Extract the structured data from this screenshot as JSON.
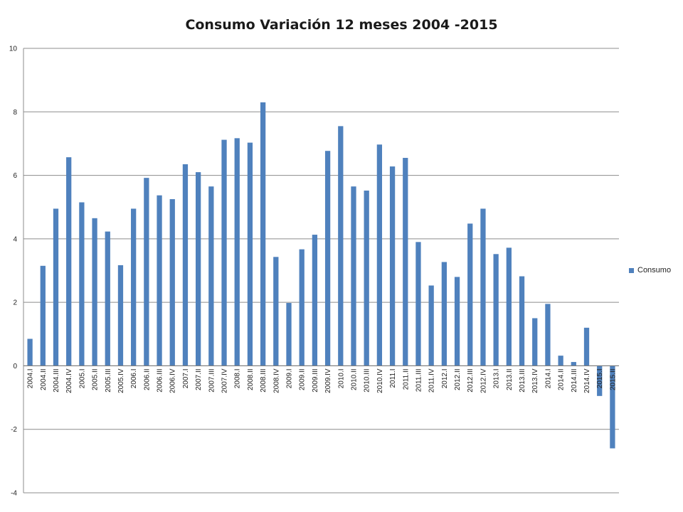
{
  "chart_data": {
    "type": "bar",
    "title": "Consumo Variación 12 meses 2004 -2015",
    "xlabel": "",
    "ylabel": "",
    "ylim": [
      -4,
      10
    ],
    "yticks": [
      -4,
      -2,
      0,
      2,
      4,
      6,
      8,
      10
    ],
    "grid": true,
    "legend_position": "right",
    "bar_color": "#4F81BD",
    "categories": [
      "2004.I",
      "2004.II",
      "2004.III",
      "2004.IV",
      "2005.I",
      "2005.II",
      "2005.III",
      "2005.IV",
      "2006.I",
      "2006.II",
      "2006.III",
      "2006.IV",
      "2007.I",
      "2007.II",
      "2007.III",
      "2007.IV",
      "2008.I",
      "2008.II",
      "2008.III",
      "2008.IV",
      "2009.I",
      "2009.II",
      "2009.III",
      "2009.IV",
      "2010.I",
      "2010.II",
      "2010.III",
      "2010.IV",
      "2011.I",
      "2011.II",
      "2011.III",
      "2011.IV",
      "2012.I",
      "2012.II",
      "2012.III",
      "2012.IV",
      "2013.I",
      "2013.II",
      "2013.III",
      "2013.IV",
      "2014.I",
      "2014.II",
      "2014.III",
      "2014.IV",
      "2015.I",
      "2015.II"
    ],
    "series": [
      {
        "name": "Consumo",
        "values": [
          0.85,
          3.15,
          4.95,
          6.57,
          5.15,
          4.65,
          4.23,
          3.17,
          4.95,
          5.92,
          5.37,
          5.25,
          6.35,
          6.1,
          5.65,
          7.12,
          7.17,
          7.03,
          8.3,
          3.43,
          1.98,
          3.67,
          4.13,
          6.77,
          7.55,
          5.65,
          5.52,
          6.97,
          6.28,
          6.55,
          3.9,
          2.53,
          3.27,
          2.8,
          4.48,
          4.95,
          3.52,
          3.72,
          2.82,
          1.5,
          1.95,
          0.32,
          0.12,
          1.2,
          -0.95,
          -2.6
        ]
      }
    ]
  }
}
